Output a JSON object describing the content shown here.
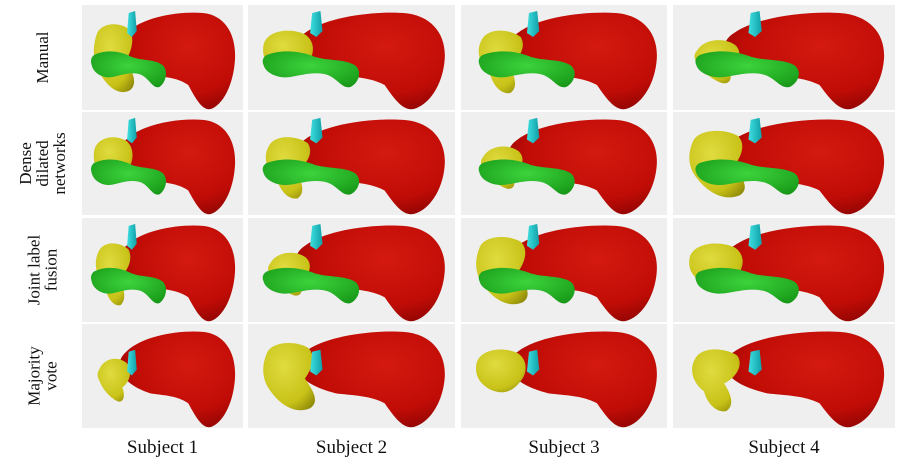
{
  "rows": [
    {
      "lines": [
        "Manual"
      ]
    },
    {
      "lines": [
        "Dense",
        "dilated",
        "networks"
      ]
    },
    {
      "lines": [
        "Joint label",
        "fusion"
      ]
    },
    {
      "lines": [
        "Majority",
        "vote"
      ]
    }
  ],
  "columns": [
    "Subject 1",
    "Subject 2",
    "Subject 3",
    "Subject 4"
  ]
}
